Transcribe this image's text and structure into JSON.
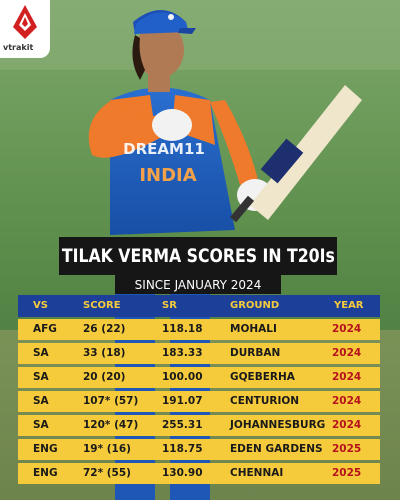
{
  "brand": {
    "logo_text": "vtrakit"
  },
  "title": "TILAK VERMA SCORES IN T20Is",
  "subtitle": "SINCE JANUARY 2024",
  "table": {
    "headers": {
      "vs": "VS",
      "score": "SCORE",
      "sr": "SR",
      "ground": "GROUND",
      "year": "YEAR"
    },
    "rows": [
      {
        "vs": "AFG",
        "score": "26 (22)",
        "sr": "118.18",
        "ground": "MOHALI",
        "year": "2024"
      },
      {
        "vs": "SA",
        "score": "33 (18)",
        "sr": "183.33",
        "ground": "DURBAN",
        "year": "2024"
      },
      {
        "vs": "SA",
        "score": "20 (20)",
        "sr": "100.00",
        "ground": "GQEBERHA",
        "year": "2024"
      },
      {
        "vs": "SA",
        "score": "107* (57)",
        "sr": "191.07",
        "ground": "CENTURION",
        "year": "2024"
      },
      {
        "vs": "SA",
        "score": "120* (47)",
        "sr": "255.31",
        "ground": "JOHANNESBURG",
        "year": "2024"
      },
      {
        "vs": "ENG",
        "score": "19* (16)",
        "sr": "118.75",
        "ground": "EDEN GARDENS",
        "year": "2025"
      },
      {
        "vs": "ENG",
        "score": "72* (55)",
        "sr": "130.90",
        "ground": "CHENNAI",
        "year": "2025"
      }
    ]
  },
  "jersey_text": {
    "sponsor": "DREAM11",
    "country": "INDIA"
  },
  "colors": {
    "header_bg": "#1c3f9a",
    "header_text": "#f5cb3c",
    "row_bg": "#f5cb3c",
    "year_text": "#b7131c",
    "title_bg": "#161616"
  }
}
